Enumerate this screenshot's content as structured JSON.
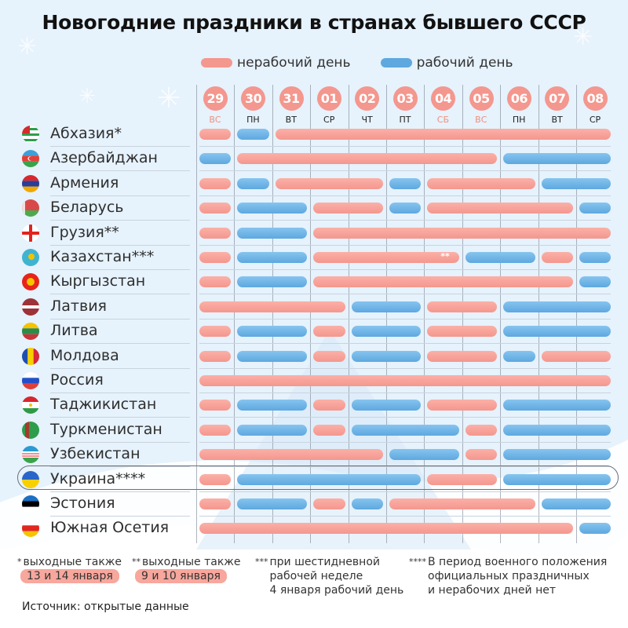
{
  "title": "Новогодние праздники в странах бывшего СССР",
  "legend": [
    {
      "label": "нерабочий день",
      "color": "#f4978e",
      "key": "n"
    },
    {
      "label": "рабочий день",
      "color": "#5ea8df",
      "key": "w"
    }
  ],
  "days": [
    {
      "num": "29",
      "wd": "ВС",
      "weekend": true
    },
    {
      "num": "30",
      "wd": "ПН",
      "weekend": false
    },
    {
      "num": "31",
      "wd": "ВТ",
      "weekend": false
    },
    {
      "num": "01",
      "wd": "СР",
      "weekend": false
    },
    {
      "num": "02",
      "wd": "ЧТ",
      "weekend": false
    },
    {
      "num": "03",
      "wd": "ПТ",
      "weekend": false
    },
    {
      "num": "04",
      "wd": "СБ",
      "weekend": true
    },
    {
      "num": "05",
      "wd": "ВС",
      "weekend": true
    },
    {
      "num": "06",
      "wd": "ПН",
      "weekend": false
    },
    {
      "num": "07",
      "wd": "ВТ",
      "weekend": false
    },
    {
      "num": "08",
      "wd": "СР",
      "weekend": false
    }
  ],
  "countries": [
    {
      "name": "Абхазия*",
      "flag": "abkhazia",
      "days": "NWNNNNNNNNN"
    },
    {
      "name": "Азербайджан",
      "flag": "azerbaijan",
      "days": "WNNNNNNNWWW"
    },
    {
      "name": "Армения",
      "flag": "armenia",
      "days": "NWNNNWNNNWW"
    },
    {
      "name": "Беларусь",
      "flag": "belarus",
      "days": "NWWNNWNNNNW"
    },
    {
      "name": "Грузия**",
      "flag": "georgia",
      "days": "NWWNNNNNNNN"
    },
    {
      "name": "Казахстан***",
      "flag": "kazakhstan",
      "days": "NWWNNNNWWNW",
      "note": {
        "day": 6,
        "text": "**"
      }
    },
    {
      "name": "Кыргызстан",
      "flag": "kyrgyzstan",
      "days": "NWWNNNNNNNW"
    },
    {
      "name": "Латвия",
      "flag": "latvia",
      "days": "NNNNWWNNWWW"
    },
    {
      "name": "Литва",
      "flag": "lithuania",
      "days": "NWWNWWNNWWW"
    },
    {
      "name": "Молдова",
      "flag": "moldova",
      "days": "NWWNWWNNWNN"
    },
    {
      "name": "Россия",
      "flag": "russia",
      "days": "NNNNNNNNNNN"
    },
    {
      "name": "Таджикистан",
      "flag": "tajikistan",
      "days": "NWWNWWNNWWW"
    },
    {
      "name": "Туркменистан",
      "flag": "turkmenistan",
      "days": "NWWNWWWNWWW"
    },
    {
      "name": "Узбекистан",
      "flag": "uzbekistan",
      "days": "NNNNNWWNWWW"
    },
    {
      "name": "Украина****",
      "flag": "ukraine",
      "days": "NWWWWWNNWWW",
      "highlight": true
    },
    {
      "name": "Эстония",
      "flag": "estonia",
      "days": "NWWNWNNNNWW"
    },
    {
      "name": "Южная Осетия",
      "flag": "south_ossetia",
      "days": "NNNNNNNNNNW"
    }
  ],
  "footnotes": [
    {
      "marker": "*",
      "text": "выходные также",
      "pill": "13 и 14 января"
    },
    {
      "marker": "**",
      "text": "выходные также",
      "pill": "9 и 10 января"
    },
    {
      "marker": "***",
      "lines": [
        "при шестидневной",
        "рабочей неделе",
        "4 января рабочий день"
      ]
    },
    {
      "marker": "****",
      "lines": [
        "В период военного положения",
        "официальных праздничных",
        "и нерабочих дней нет"
      ]
    }
  ],
  "source": "Источник: открытые данные",
  "chart_data": {
    "type": "table",
    "title": "Новогодние праздники в странах бывшего СССР",
    "categories": [
      "29 ВС",
      "30 ПН",
      "31 ВТ",
      "01 СР",
      "02 ЧТ",
      "03 ПТ",
      "04 СБ",
      "05 ВС",
      "06 ПН",
      "07 ВТ",
      "08 СР"
    ],
    "legend": {
      "N": "нерабочий день",
      "W": "рабочий день"
    },
    "series": [
      {
        "name": "Абхазия*",
        "values": [
          "N",
          "W",
          "N",
          "N",
          "N",
          "N",
          "N",
          "N",
          "N",
          "N",
          "N"
        ]
      },
      {
        "name": "Азербайджан",
        "values": [
          "W",
          "N",
          "N",
          "N",
          "N",
          "N",
          "N",
          "N",
          "W",
          "W",
          "W"
        ]
      },
      {
        "name": "Армения",
        "values": [
          "N",
          "W",
          "N",
          "N",
          "N",
          "W",
          "N",
          "N",
          "N",
          "W",
          "W"
        ]
      },
      {
        "name": "Беларусь",
        "values": [
          "N",
          "W",
          "W",
          "N",
          "N",
          "W",
          "N",
          "N",
          "N",
          "N",
          "W"
        ]
      },
      {
        "name": "Грузия**",
        "values": [
          "N",
          "W",
          "W",
          "N",
          "N",
          "N",
          "N",
          "N",
          "N",
          "N",
          "N"
        ]
      },
      {
        "name": "Казахстан***",
        "values": [
          "N",
          "W",
          "W",
          "N",
          "N",
          "N",
          "N**",
          "W",
          "W",
          "N",
          "W"
        ]
      },
      {
        "name": "Кыргызстан",
        "values": [
          "N",
          "W",
          "W",
          "N",
          "N",
          "N",
          "N",
          "N",
          "N",
          "N",
          "W"
        ]
      },
      {
        "name": "Латвия",
        "values": [
          "N",
          "N",
          "N",
          "N",
          "W",
          "W",
          "N",
          "N",
          "W",
          "W",
          "W"
        ]
      },
      {
        "name": "Литва",
        "values": [
          "N",
          "W",
          "W",
          "N",
          "W",
          "W",
          "N",
          "N",
          "W",
          "W",
          "W"
        ]
      },
      {
        "name": "Молдова",
        "values": [
          "N",
          "W",
          "W",
          "N",
          "W",
          "W",
          "N",
          "N",
          "W",
          "N",
          "N"
        ]
      },
      {
        "name": "Россия",
        "values": [
          "N",
          "N",
          "N",
          "N",
          "N",
          "N",
          "N",
          "N",
          "N",
          "N",
          "N"
        ]
      },
      {
        "name": "Таджикистан",
        "values": [
          "N",
          "W",
          "W",
          "N",
          "W",
          "W",
          "N",
          "N",
          "W",
          "W",
          "W"
        ]
      },
      {
        "name": "Туркменистан",
        "values": [
          "N",
          "W",
          "W",
          "N",
          "W",
          "W",
          "W",
          "N",
          "W",
          "W",
          "W"
        ]
      },
      {
        "name": "Узбекистан",
        "values": [
          "N",
          "N",
          "N",
          "N",
          "N",
          "W",
          "W",
          "N",
          "W",
          "W",
          "W"
        ]
      },
      {
        "name": "Украина****",
        "values": [
          "N",
          "W",
          "W",
          "W",
          "W",
          "W",
          "N",
          "N",
          "W",
          "W",
          "W"
        ]
      },
      {
        "name": "Эстония",
        "values": [
          "N",
          "W",
          "W",
          "N",
          "W",
          "N",
          "N",
          "N",
          "N",
          "W",
          "W"
        ]
      },
      {
        "name": "Южная Осетия",
        "values": [
          "N",
          "N",
          "N",
          "N",
          "N",
          "N",
          "N",
          "N",
          "N",
          "N",
          "W"
        ]
      }
    ]
  }
}
